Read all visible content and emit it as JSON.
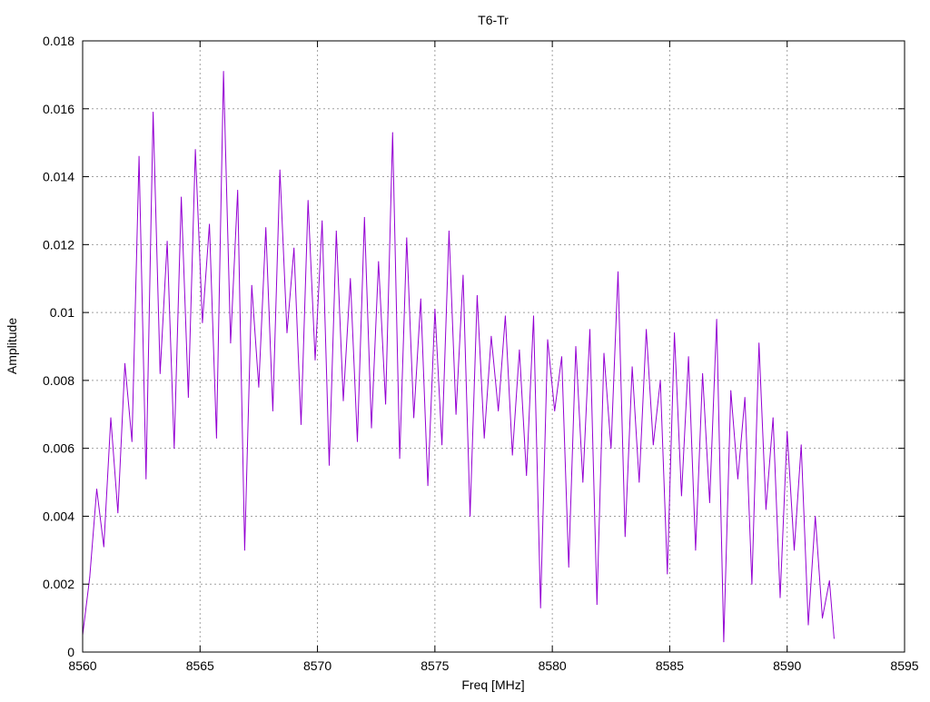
{
  "chart_data": {
    "type": "line",
    "title": "T6-Tr",
    "xlabel": "Freq [MHz]",
    "ylabel": "Amplitude",
    "xlim": [
      8560,
      8595
    ],
    "ylim": [
      0,
      0.018
    ],
    "xticks": [
      8560,
      8565,
      8570,
      8575,
      8580,
      8585,
      8590,
      8595
    ],
    "xtick_labels": [
      "8560",
      "8565",
      "8570",
      "8575",
      "8580",
      "8585",
      "8590",
      "8595"
    ],
    "yticks": [
      0,
      0.002,
      0.004,
      0.006,
      0.008,
      0.01,
      0.012,
      0.014,
      0.016,
      0.018
    ],
    "ytick_labels": [
      "0",
      "0.002",
      "0.004",
      "0.006",
      "0.008",
      "0.01",
      "0.012",
      "0.014",
      "0.016",
      "0.018"
    ],
    "grid": true,
    "legend": "none",
    "series": [
      {
        "color": "#9400d3",
        "x": [
          8560.0,
          8560.3,
          8560.6,
          8560.9,
          8561.2,
          8561.5,
          8561.8,
          8562.1,
          8562.4,
          8562.7,
          8563.0,
          8563.3,
          8563.6,
          8563.9,
          8564.2,
          8564.5,
          8564.8,
          8565.1,
          8565.4,
          8565.7,
          8566.0,
          8566.3,
          8566.6,
          8566.9,
          8567.2,
          8567.5,
          8567.8,
          8568.1,
          8568.4,
          8568.7,
          8569.0,
          8569.3,
          8569.6,
          8569.9,
          8570.2,
          8570.5,
          8570.8,
          8571.1,
          8571.4,
          8571.7,
          8572.0,
          8572.3,
          8572.6,
          8572.9,
          8573.2,
          8573.5,
          8573.8,
          8574.1,
          8574.4,
          8574.7,
          8575.0,
          8575.3,
          8575.6,
          8575.9,
          8576.2,
          8576.5,
          8576.8,
          8577.1,
          8577.4,
          8577.7,
          8578.0,
          8578.3,
          8578.6,
          8578.9,
          8579.2,
          8579.5,
          8579.8,
          8580.1,
          8580.4,
          8580.7,
          8581.0,
          8581.3,
          8581.6,
          8581.9,
          8582.2,
          8582.5,
          8582.8,
          8583.1,
          8583.4,
          8583.7,
          8584.0,
          8584.3,
          8584.6,
          8584.9,
          8585.2,
          8585.5,
          8585.8,
          8586.1,
          8586.4,
          8586.7,
          8587.0,
          8587.3,
          8587.6,
          8587.9,
          8588.2,
          8588.5,
          8588.8,
          8589.1,
          8589.4,
          8589.7,
          8590.0,
          8590.3,
          8590.6,
          8590.9,
          8591.2,
          8591.5,
          8591.8,
          8592.0
        ],
        "y": [
          0.0005,
          0.0022,
          0.0048,
          0.0031,
          0.0069,
          0.0041,
          0.0085,
          0.0062,
          0.0146,
          0.0051,
          0.0159,
          0.0082,
          0.0121,
          0.006,
          0.0134,
          0.0075,
          0.0148,
          0.0097,
          0.0126,
          0.0063,
          0.0171,
          0.0091,
          0.0136,
          0.003,
          0.0108,
          0.0078,
          0.0125,
          0.0071,
          0.0142,
          0.0094,
          0.0119,
          0.0067,
          0.0133,
          0.0086,
          0.0127,
          0.0055,
          0.0124,
          0.0074,
          0.011,
          0.0062,
          0.0128,
          0.0066,
          0.0115,
          0.0073,
          0.0153,
          0.0057,
          0.0122,
          0.0069,
          0.0104,
          0.0049,
          0.0101,
          0.0061,
          0.0124,
          0.007,
          0.0111,
          0.004,
          0.0105,
          0.0063,
          0.0093,
          0.0071,
          0.0099,
          0.0058,
          0.0089,
          0.0052,
          0.0099,
          0.0013,
          0.0092,
          0.0071,
          0.0087,
          0.0025,
          0.009,
          0.005,
          0.0095,
          0.0014,
          0.0088,
          0.006,
          0.0112,
          0.0034,
          0.0084,
          0.005,
          0.0095,
          0.0061,
          0.008,
          0.0023,
          0.0094,
          0.0046,
          0.0087,
          0.003,
          0.0082,
          0.0044,
          0.0098,
          0.0003,
          0.0077,
          0.0051,
          0.0075,
          0.002,
          0.0091,
          0.0042,
          0.0069,
          0.0016,
          0.0065,
          0.003,
          0.0061,
          0.0008,
          0.004,
          0.001,
          0.0021,
          0.0004
        ]
      }
    ]
  }
}
